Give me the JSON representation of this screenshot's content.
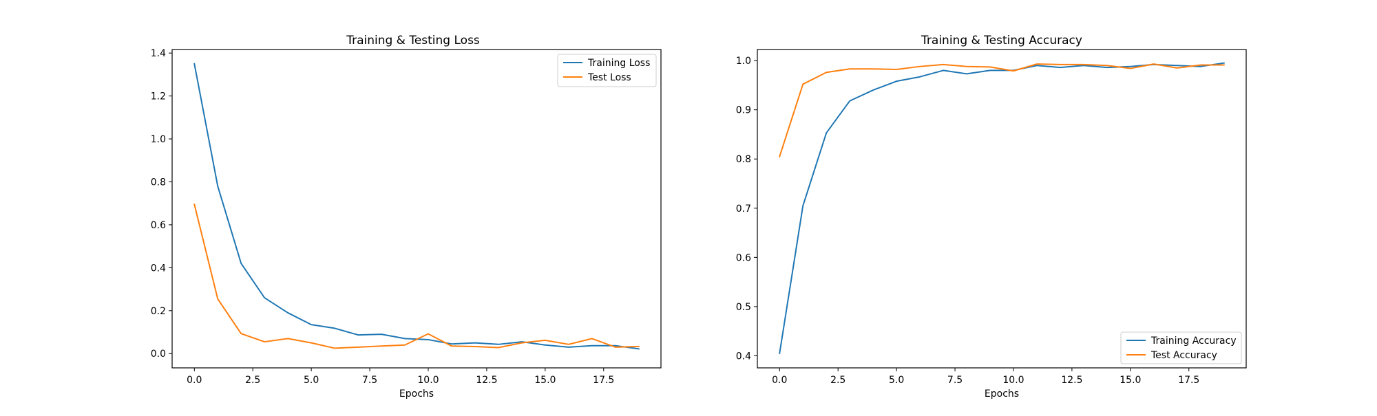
{
  "chart_data": [
    {
      "type": "line",
      "title": "Training & Testing Loss",
      "xlabel": "Epochs",
      "ylabel": "",
      "xlim": [
        -0.95,
        19.95
      ],
      "ylim": [
        -0.0665,
        1.4165
      ],
      "xticks": [
        0.0,
        2.5,
        5.0,
        7.5,
        10.0,
        12.5,
        15.0,
        17.5
      ],
      "xtick_labels": [
        "0.0",
        "2.5",
        "5.0",
        "7.5",
        "10.0",
        "12.5",
        "15.0",
        "17.5"
      ],
      "yticks": [
        0.0,
        0.2,
        0.4,
        0.6,
        0.8,
        1.0,
        1.2,
        1.4
      ],
      "ytick_labels": [
        "0.0",
        "0.2",
        "0.4",
        "0.6",
        "0.8",
        "1.0",
        "1.2",
        "1.4"
      ],
      "grid": false,
      "legend": "upper-right",
      "x": [
        0,
        1,
        2,
        3,
        4,
        5,
        6,
        7,
        8,
        9,
        10,
        11,
        12,
        13,
        14,
        15,
        16,
        17,
        18,
        19
      ],
      "series": [
        {
          "name": "Training Loss",
          "color": "#1f77b4",
          "values": [
            1.35,
            0.78,
            0.42,
            0.26,
            0.19,
            0.135,
            0.118,
            0.087,
            0.09,
            0.07,
            0.065,
            0.045,
            0.05,
            0.043,
            0.055,
            0.04,
            0.03,
            0.037,
            0.037,
            0.022
          ]
        },
        {
          "name": "Test Loss",
          "color": "#ff7f0e",
          "values": [
            0.695,
            0.255,
            0.093,
            0.055,
            0.07,
            0.05,
            0.025,
            0.03,
            0.035,
            0.04,
            0.092,
            0.035,
            0.033,
            0.028,
            0.05,
            0.062,
            0.043,
            0.07,
            0.03,
            0.033
          ]
        }
      ]
    },
    {
      "type": "line",
      "title": "Training & Testing Accuracy",
      "xlabel": "Epochs",
      "ylabel": "",
      "xlim": [
        -0.95,
        19.95
      ],
      "ylim": [
        0.3755,
        1.0225
      ],
      "xticks": [
        0.0,
        2.5,
        5.0,
        7.5,
        10.0,
        12.5,
        15.0,
        17.5
      ],
      "xtick_labels": [
        "0.0",
        "2.5",
        "5.0",
        "7.5",
        "10.0",
        "12.5",
        "15.0",
        "17.5"
      ],
      "yticks": [
        0.4,
        0.5,
        0.6,
        0.7,
        0.8,
        0.9,
        1.0
      ],
      "ytick_labels": [
        "0.4",
        "0.5",
        "0.6",
        "0.7",
        "0.8",
        "0.9",
        "1.0"
      ],
      "grid": false,
      "legend": "lower-right",
      "x": [
        0,
        1,
        2,
        3,
        4,
        5,
        6,
        7,
        8,
        9,
        10,
        11,
        12,
        13,
        14,
        15,
        16,
        17,
        18,
        19
      ],
      "series": [
        {
          "name": "Training Accuracy",
          "color": "#1f77b4",
          "values": [
            0.405,
            0.705,
            0.853,
            0.918,
            0.94,
            0.958,
            0.967,
            0.98,
            0.973,
            0.98,
            0.98,
            0.99,
            0.986,
            0.99,
            0.986,
            0.988,
            0.992,
            0.99,
            0.988,
            0.995
          ]
        },
        {
          "name": "Test Accuracy",
          "color": "#ff7f0e",
          "values": [
            0.805,
            0.952,
            0.976,
            0.983,
            0.983,
            0.982,
            0.988,
            0.992,
            0.988,
            0.987,
            0.979,
            0.993,
            0.992,
            0.992,
            0.99,
            0.984,
            0.993,
            0.985,
            0.991,
            0.991
          ]
        }
      ]
    }
  ]
}
